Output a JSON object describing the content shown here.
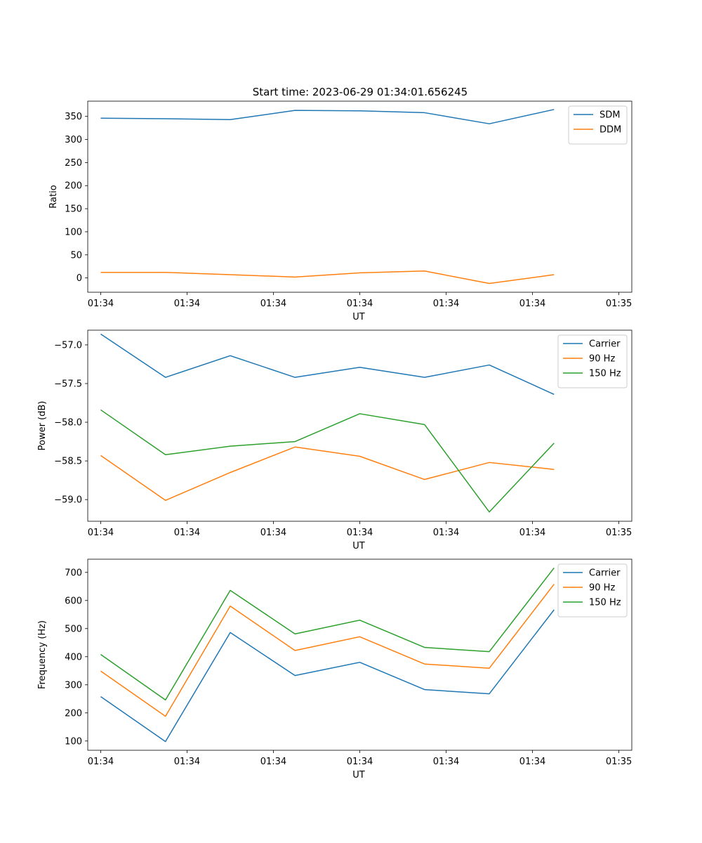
{
  "figure": {
    "title": "Start time: 2023-06-29 01:34:01.656245"
  },
  "chart_data": [
    {
      "type": "line",
      "title": "Start time: 2023-06-29 01:34:01.656245",
      "xlabel": "UT",
      "ylabel": "Ratio",
      "x_tick_labels": [
        "01:34",
        "01:34",
        "01:34",
        "01:34",
        "01:34",
        "01:34",
        "01:35"
      ],
      "x": [
        1,
        2,
        3,
        4,
        5,
        6,
        7,
        8
      ],
      "xlim": [
        0.8,
        9.2
      ],
      "ylim": [
        -31,
        383
      ],
      "y_ticks": [
        0,
        50,
        100,
        150,
        200,
        250,
        300,
        350
      ],
      "grid": false,
      "legend": "top-right",
      "series": [
        {
          "name": "SDM",
          "color": "#1f77b4",
          "values": [
            346,
            345,
            343,
            363,
            362,
            358,
            334,
            365
          ]
        },
        {
          "name": "DDM",
          "color": "#ff7f0e",
          "values": [
            12,
            12,
            7,
            2,
            11,
            15,
            -12,
            7
          ]
        }
      ]
    },
    {
      "type": "line",
      "xlabel": "UT",
      "ylabel": "Power (dB)",
      "x_tick_labels": [
        "01:34",
        "01:34",
        "01:34",
        "01:34",
        "01:34",
        "01:34",
        "01:35"
      ],
      "x": [
        1,
        2,
        3,
        4,
        5,
        6,
        7,
        8
      ],
      "xlim": [
        0.8,
        9.2
      ],
      "ylim": [
        -59.28,
        -56.81
      ],
      "y_ticks": [
        -57.0,
        -57.5,
        -58.0,
        -58.5,
        -59.0
      ],
      "y_tick_labels": [
        "−57.0",
        "−57.5",
        "−58.0",
        "−58.5",
        "−59.0"
      ],
      "grid": false,
      "legend": "top-right",
      "series": [
        {
          "name": "Carrier",
          "color": "#1f77b4",
          "values": [
            -56.86,
            -57.42,
            -57.14,
            -57.42,
            -57.29,
            -57.42,
            -57.26,
            -57.64
          ]
        },
        {
          "name": "90 Hz",
          "color": "#ff7f0e",
          "values": [
            -58.43,
            -59.01,
            -58.65,
            -58.32,
            -58.44,
            -58.74,
            -58.52,
            -58.61
          ]
        },
        {
          "name": "150 Hz",
          "color": "#2ca02c",
          "values": [
            -57.84,
            -58.42,
            -58.31,
            -58.25,
            -57.89,
            -58.03,
            -59.16,
            -58.27
          ]
        }
      ]
    },
    {
      "type": "line",
      "xlabel": "UT",
      "ylabel": "Frequency (Hz)",
      "x_tick_labels": [
        "01:34",
        "01:34",
        "01:34",
        "01:34",
        "01:34",
        "01:34",
        "01:35"
      ],
      "x": [
        1,
        2,
        3,
        4,
        5,
        6,
        7,
        8
      ],
      "xlim": [
        0.8,
        9.2
      ],
      "ylim": [
        67,
        747
      ],
      "y_ticks": [
        100,
        200,
        300,
        400,
        500,
        600,
        700
      ],
      "grid": false,
      "legend": "top-right",
      "series": [
        {
          "name": "Carrier",
          "color": "#1f77b4",
          "values": [
            258,
            98,
            486,
            333,
            380,
            283,
            268,
            567
          ]
        },
        {
          "name": "90 Hz",
          "color": "#ff7f0e",
          "values": [
            349,
            188,
            580,
            422,
            471,
            374,
            359,
            658
          ]
        },
        {
          "name": "150 Hz",
          "color": "#2ca02c",
          "values": [
            408,
            246,
            636,
            481,
            530,
            433,
            418,
            716
          ]
        }
      ]
    }
  ]
}
